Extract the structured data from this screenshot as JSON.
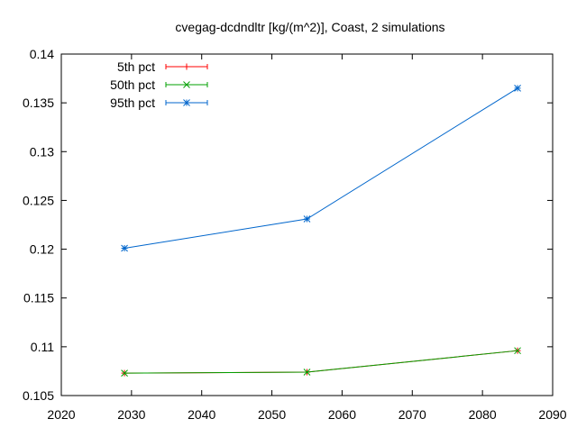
{
  "chart_data": {
    "type": "line",
    "title": "cvegag-dcdndltr [kg/(m^2)], Coast, 2 simulations",
    "xlabel": "",
    "ylabel": "",
    "xlim": [
      2020,
      2090
    ],
    "ylim": [
      0.105,
      0.14
    ],
    "x_ticks": [
      "2020",
      "2030",
      "2040",
      "2050",
      "2060",
      "2070",
      "2080",
      "2090"
    ],
    "y_ticks": [
      "0.105",
      "0.11",
      "0.115",
      "0.12",
      "0.125",
      "0.13",
      "0.135",
      "0.14"
    ],
    "grid": false,
    "legend_position": "top-left",
    "series": [
      {
        "name": "5th pct",
        "color": "#ff0000",
        "marker": "plus",
        "x": [
          2029,
          2055,
          2085
        ],
        "values": [
          0.1073,
          0.1074,
          0.1096
        ]
      },
      {
        "name": "50th pct",
        "color": "#00a000",
        "marker": "cross",
        "x": [
          2029,
          2055,
          2085
        ],
        "values": [
          0.1073,
          0.1074,
          0.1096
        ]
      },
      {
        "name": "95th pct",
        "color": "#0066cc",
        "marker": "star",
        "x": [
          2029,
          2055,
          2085
        ],
        "values": [
          0.1201,
          0.1231,
          0.1365
        ]
      }
    ]
  }
}
